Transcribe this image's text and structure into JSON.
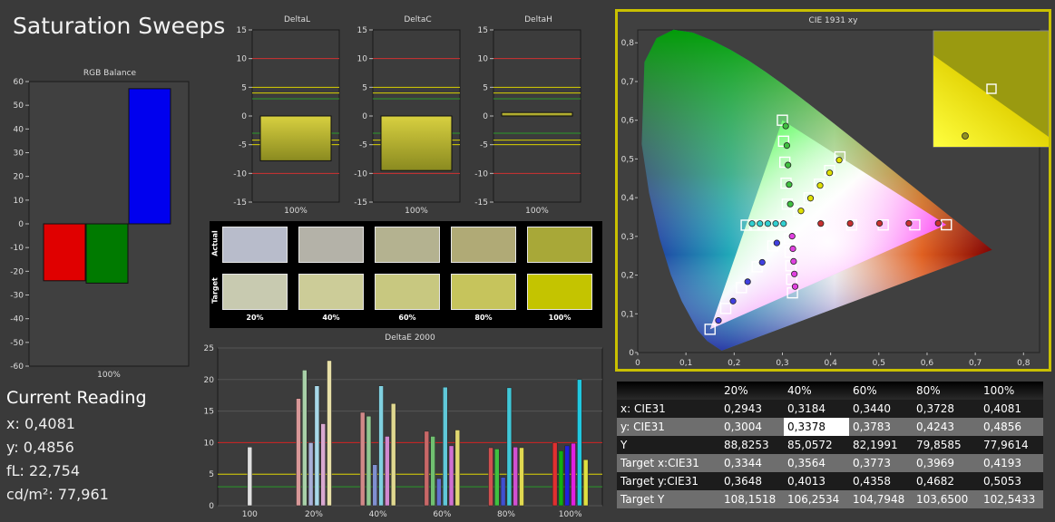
{
  "page": {
    "title": "Saturation Sweeps"
  },
  "rgb_balance": {
    "title": "RGB Balance",
    "ticks": [
      "60",
      "50",
      "40",
      "30",
      "20",
      "10",
      "0",
      "-10",
      "-20",
      "-30",
      "-40",
      "-50",
      "-60"
    ],
    "category": "100%",
    "bars": [
      {
        "name": "R",
        "value": -24,
        "color": "#e00000"
      },
      {
        "name": "G",
        "value": -25,
        "color": "#007a00"
      },
      {
        "name": "B",
        "value": 57,
        "color": "#0000ee"
      }
    ]
  },
  "delta_charts": [
    {
      "title": "DeltaL",
      "value": -7.8,
      "category": "100%"
    },
    {
      "title": "DeltaC",
      "value": -9.5,
      "category": "100%"
    },
    {
      "title": "DeltaH",
      "value": 0.6,
      "category": "100%"
    }
  ],
  "delta_ticks": [
    "15",
    "10",
    "5",
    "0",
    "-5",
    "-10",
    "-15"
  ],
  "swatches": {
    "actual_label": "Actual",
    "target_label": "Target",
    "labels": [
      "20%",
      "40%",
      "60%",
      "80%",
      "100%"
    ],
    "actual": [
      "#b8bccb",
      "#b4b2a8",
      "#b4b290",
      "#b0aa76",
      "#a8a838"
    ],
    "target": [
      "#c8cab0",
      "#cccc98",
      "#c8c880",
      "#c6c45c",
      "#c4c400"
    ]
  },
  "deltae": {
    "title": "DeltaE 2000",
    "yticks": [
      "25",
      "20",
      "15",
      "10",
      "5",
      "0"
    ],
    "categories": [
      "100",
      "20%",
      "40%",
      "60%",
      "80%",
      "100%"
    ],
    "group_values": [
      [
        9.3
      ],
      [
        17.0,
        21.5,
        10.0,
        19.0,
        13.0,
        23.0
      ],
      [
        14.8,
        14.2,
        6.5,
        19.0,
        11.0,
        16.2
      ],
      [
        11.8,
        11.0,
        4.3,
        18.8,
        9.5,
        12.0
      ],
      [
        9.2,
        9.0,
        4.5,
        18.7,
        9.3,
        9.2
      ],
      [
        10.0,
        8.7,
        9.5,
        9.9,
        20.0,
        7.3
      ]
    ]
  },
  "cie": {
    "title": "CIE 1931 xy",
    "xticks": [
      "0",
      "0,1",
      "0,2",
      "0,3",
      "0,4",
      "0,5",
      "0,6",
      "0,7",
      "0,8"
    ],
    "yticks": [
      "0,8",
      "0,7",
      "0,6",
      "0,5",
      "0,4",
      "0,3",
      "0,2",
      "0,1",
      "0"
    ]
  },
  "reading": {
    "title": "Current Reading",
    "x": "x: 0,4081",
    "y": "y: 0,4856",
    "fl": "fL: 22,754",
    "cdm2": "cd/m²: 77,961"
  },
  "table": {
    "headers": [
      "",
      "20%",
      "40%",
      "60%",
      "80%",
      "100%"
    ],
    "rows": [
      [
        "x: CIE31",
        "0,2943",
        "0,3184",
        "0,3440",
        "0,3728",
        "0,4081"
      ],
      [
        "y: CIE31",
        "0,3004",
        "0,3378",
        "0,3783",
        "0,4243",
        "0,4856"
      ],
      [
        "Y",
        "88,8253",
        "85,0572",
        "82,1991",
        "79,8585",
        "77,9614"
      ],
      [
        "Target x:CIE31",
        "0,3344",
        "0,3564",
        "0,3773",
        "0,3969",
        "0,4193"
      ],
      [
        "Target y:CIE31",
        "0,3648",
        "0,4013",
        "0,4358",
        "0,4682",
        "0,5053"
      ],
      [
        "Target Y",
        "108,1518",
        "106,2534",
        "104,7948",
        "103,6500",
        "102,5433"
      ]
    ]
  }
}
